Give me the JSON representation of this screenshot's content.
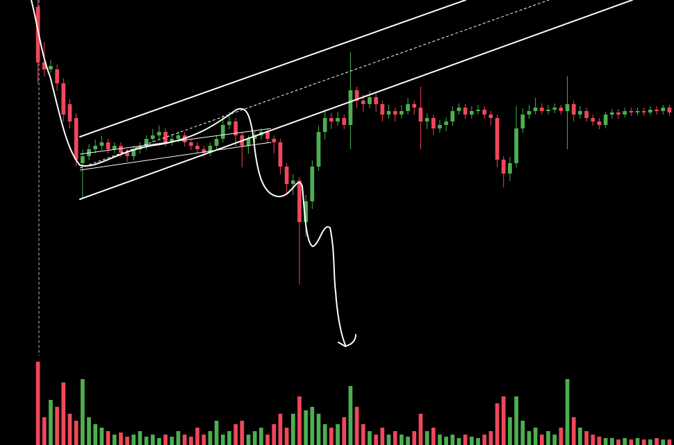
{
  "chart_data": {
    "type": "candlestick",
    "up_color": "#4caf50",
    "down_color": "#f0475a",
    "ylim": [
      0,
      641
    ],
    "volume_lim": [
      0,
      641
    ],
    "open": [
      631,
      551,
      541,
      541,
      521,
      491,
      471,
      406,
      416,
      426,
      431,
      436,
      426,
      431,
      421,
      416,
      426,
      431,
      441,
      446,
      451,
      436,
      441,
      446,
      436,
      431,
      426,
      421,
      431,
      441,
      461,
      466,
      446,
      431,
      441,
      446,
      451,
      441,
      436,
      401,
      376,
      381,
      321,
      351,
      401,
      451,
      471,
      466,
      471,
      461,
      511,
      496,
      491,
      501,
      491,
      476,
      481,
      476,
      481,
      491,
      486,
      466,
      471,
      456,
      461,
      466,
      481,
      486,
      476,
      481,
      483,
      476,
      471,
      411,
      391,
      406,
      456,
      476,
      481,
      486,
      481,
      483,
      486,
      481,
      491,
      476,
      481,
      471,
      466,
      461,
      476,
      479,
      476,
      481,
      479,
      481,
      479,
      483,
      481,
      486
    ],
    "high": [
      641,
      580,
      555,
      548,
      528,
      498,
      478,
      425,
      433,
      440,
      445,
      441,
      436,
      436,
      426,
      431,
      436,
      446,
      455,
      460,
      456,
      448,
      452,
      451,
      441,
      436,
      431,
      436,
      446,
      475,
      480,
      471,
      451,
      446,
      452,
      456,
      456,
      446,
      441,
      406,
      390,
      386,
      360,
      410,
      460,
      480,
      478,
      480,
      476,
      566,
      516,
      505,
      510,
      506,
      496,
      490,
      486,
      490,
      500,
      496,
      516,
      478,
      476,
      468,
      472,
      488,
      492,
      491,
      488,
      490,
      488,
      481,
      476,
      416,
      415,
      488,
      485,
      490,
      500,
      492,
      490,
      492,
      490,
      531,
      496,
      488,
      486,
      476,
      471,
      480,
      484,
      484,
      486,
      486,
      486,
      486,
      488,
      488,
      490,
      490
    ],
    "low": [
      521,
      531,
      536,
      510,
      466,
      456,
      401,
      355,
      410,
      420,
      425,
      420,
      420,
      415,
      408,
      410,
      420,
      425,
      436,
      441,
      430,
      431,
      436,
      430,
      425,
      420,
      415,
      416,
      426,
      436,
      455,
      430,
      400,
      420,
      436,
      440,
      436,
      420,
      390,
      360,
      360,
      231,
      300,
      340,
      395,
      440,
      455,
      460,
      455,
      426,
      485,
      480,
      485,
      480,
      466,
      470,
      466,
      470,
      476,
      476,
      426,
      455,
      446,
      450,
      452,
      460,
      476,
      470,
      470,
      476,
      470,
      460,
      400,
      371,
      380,
      400,
      450,
      470,
      476,
      476,
      476,
      478,
      476,
      426,
      466,
      470,
      466,
      460,
      455,
      456,
      470,
      470,
      472,
      474,
      475,
      474,
      475,
      476,
      476,
      474
    ],
    "close": [
      551,
      541,
      546,
      521,
      476,
      466,
      411,
      416,
      426,
      431,
      436,
      426,
      431,
      421,
      416,
      426,
      431,
      441,
      446,
      451,
      436,
      441,
      446,
      436,
      431,
      426,
      421,
      431,
      441,
      461,
      466,
      446,
      431,
      441,
      446,
      451,
      441,
      436,
      401,
      376,
      381,
      321,
      351,
      401,
      451,
      471,
      466,
      471,
      461,
      511,
      496,
      491,
      501,
      491,
      476,
      481,
      476,
      481,
      491,
      486,
      466,
      471,
      456,
      461,
      466,
      481,
      486,
      476,
      481,
      483,
      476,
      471,
      411,
      391,
      406,
      456,
      476,
      481,
      486,
      481,
      483,
      486,
      481,
      491,
      476,
      481,
      471,
      466,
      461,
      476,
      479,
      476,
      481,
      479,
      481,
      479,
      483,
      481,
      486,
      479
    ],
    "volume": [
      120,
      40,
      65,
      55,
      90,
      45,
      35,
      95,
      40,
      30,
      25,
      20,
      15,
      18,
      12,
      15,
      20,
      12,
      15,
      10,
      15,
      12,
      20,
      15,
      12,
      25,
      15,
      20,
      35,
      15,
      20,
      30,
      35,
      15,
      20,
      25,
      15,
      30,
      45,
      25,
      45,
      70,
      50,
      55,
      45,
      30,
      25,
      30,
      40,
      85,
      55,
      30,
      20,
      15,
      25,
      15,
      20,
      15,
      12,
      20,
      45,
      20,
      25,
      15,
      12,
      15,
      10,
      15,
      12,
      10,
      15,
      20,
      60,
      70,
      40,
      70,
      35,
      20,
      25,
      15,
      20,
      15,
      25,
      95,
      40,
      25,
      20,
      15,
      12,
      10,
      10,
      8,
      10,
      8,
      10,
      8,
      8,
      10,
      8,
      8
    ]
  }
}
